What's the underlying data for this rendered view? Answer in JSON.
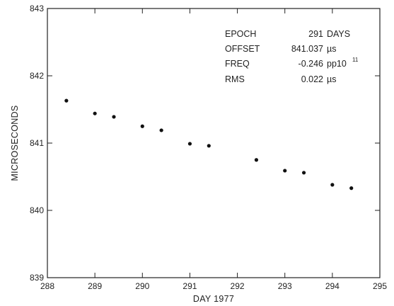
{
  "chart_data": {
    "type": "scatter",
    "title": "",
    "xlabel": "DAY 1977",
    "ylabel": "MICROSECONDS",
    "xlim": [
      288,
      295
    ],
    "ylim": [
      839,
      843
    ],
    "x_ticks": [
      "288",
      "289",
      "290",
      "291",
      "292",
      "293",
      "294",
      "295"
    ],
    "y_ticks": [
      "839",
      "840",
      "841",
      "842",
      "843"
    ],
    "grid": false,
    "series": [
      {
        "points": [
          {
            "x": 288.4,
            "y": 841.63
          },
          {
            "x": 289.0,
            "y": 841.44
          },
          {
            "x": 289.4,
            "y": 841.39
          },
          {
            "x": 290.0,
            "y": 841.25
          },
          {
            "x": 290.4,
            "y": 841.19
          },
          {
            "x": 291.0,
            "y": 840.99
          },
          {
            "x": 291.4,
            "y": 840.96
          },
          {
            "x": 292.4,
            "y": 840.75
          },
          {
            "x": 293.0,
            "y": 840.59
          },
          {
            "x": 293.4,
            "y": 840.56
          },
          {
            "x": 294.0,
            "y": 840.38
          },
          {
            "x": 294.4,
            "y": 840.33
          }
        ]
      }
    ],
    "annotations": [
      {
        "label": "EPOCH",
        "value": "291",
        "unit": "DAYS",
        "unit_sup": ""
      },
      {
        "label": "OFFSET",
        "value": "841.037",
        "unit": "µs",
        "unit_sup": ""
      },
      {
        "label": "FREQ",
        "value": "-0.246",
        "unit": "pp10",
        "unit_sup": "11"
      },
      {
        "label": "RMS",
        "value": "0.022",
        "unit": "µs",
        "unit_sup": ""
      }
    ],
    "marker_color": "#111111",
    "axis_color": "#222222"
  }
}
